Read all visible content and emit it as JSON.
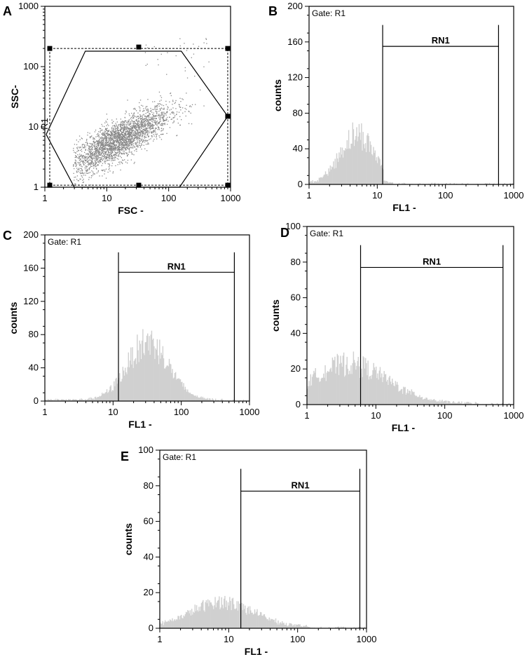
{
  "chart_data": [
    {
      "panel": "A",
      "type": "scatter",
      "xlabel": "FSC -",
      "ylabel": "SSC-",
      "xscale": "log",
      "yscale": "log",
      "xlim": [
        1,
        1000
      ],
      "ylim": [
        1,
        1000
      ],
      "x_ticks": [
        "1",
        "10",
        "100",
        "1000"
      ],
      "y_ticks": [
        "1",
        "10",
        "100",
        "1000"
      ],
      "gate_label": "R1",
      "gate_polygon": [
        [
          1.05,
          7.5
        ],
        [
          4.5,
          180
        ],
        [
          160,
          180
        ],
        [
          900,
          15
        ],
        [
          150,
          1
        ],
        [
          3,
          1
        ],
        [
          1.05,
          7.5
        ]
      ],
      "cluster": {
        "center": [
          15,
          6
        ],
        "spread_log": [
          0.42,
          0.3
        ],
        "count": 2800,
        "color": "#888888"
      }
    },
    {
      "panel": "B",
      "type": "histogram",
      "gate": "Gate: R1",
      "xlabel": "FL1 -",
      "ylabel": "counts",
      "xscale": "log",
      "xlim": [
        1,
        1000
      ],
      "ylim": [
        0,
        200
      ],
      "x_ticks": [
        "1",
        "10",
        "100",
        "1000"
      ],
      "y_ticks": [
        "0",
        "40",
        "80",
        "120",
        "160",
        "200"
      ],
      "marker": {
        "label": "RN1",
        "x_start": 12,
        "x_end": 600,
        "y": 155
      },
      "distribution": {
        "peak_x": 5,
        "peak_count": 55,
        "sigma_log": 0.25,
        "max_x": 12
      },
      "fill": "#d0d0d0"
    },
    {
      "panel": "C",
      "type": "histogram",
      "gate": "Gate: R1",
      "xlabel": "FL1 -",
      "ylabel": "counts",
      "xscale": "log",
      "xlim": [
        1,
        1000
      ],
      "ylim": [
        0,
        200
      ],
      "x_ticks": [
        "1",
        "10",
        "100",
        "1000"
      ],
      "y_ticks": [
        "0",
        "40",
        "80",
        "120",
        "160",
        "200"
      ],
      "marker": {
        "label": "RN1",
        "x_start": 12,
        "x_end": 600,
        "y": 155
      },
      "distribution": {
        "peak_x": 32,
        "peak_count": 70,
        "sigma_log": 0.3,
        "max_x": 400
      },
      "fill": "#d0d0d0"
    },
    {
      "panel": "D",
      "type": "histogram",
      "gate": "Gate: R1",
      "xlabel": "FL1 -",
      "ylabel": "counts",
      "xscale": "log",
      "xlim": [
        1,
        1000
      ],
      "ylim": [
        0,
        100
      ],
      "x_ticks": [
        "1",
        "10",
        "100",
        "1000"
      ],
      "y_ticks": [
        "0",
        "20",
        "40",
        "60",
        "80",
        "100"
      ],
      "marker": {
        "label": "RN1",
        "x_start": 6,
        "x_end": 700,
        "y": 77
      },
      "distribution": {
        "peak_x": 4,
        "peak_count": 22,
        "sigma_log": 0.55,
        "max_x": 300
      },
      "fill": "#d0d0d0"
    },
    {
      "panel": "E",
      "type": "histogram",
      "gate": "Gate: R1",
      "xlabel": "FL1 -",
      "ylabel": "counts",
      "xscale": "log",
      "xlim": [
        1,
        1000
      ],
      "ylim": [
        0,
        100
      ],
      "x_ticks": [
        "1",
        "10",
        "100",
        "1000"
      ],
      "y_ticks": [
        "0",
        "20",
        "40",
        "60",
        "80",
        "100"
      ],
      "marker": {
        "label": "RN1",
        "x_start": 15,
        "x_end": 800,
        "y": 77
      },
      "distribution": {
        "peak_x": 8,
        "peak_count": 14,
        "sigma_log": 0.45,
        "max_x": 150
      },
      "fill": "#d0d0d0"
    }
  ]
}
